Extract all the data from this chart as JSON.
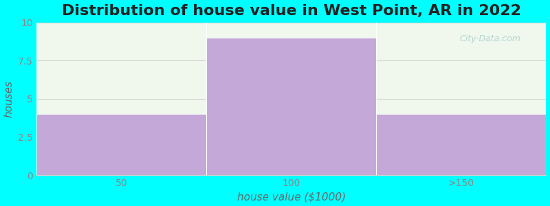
{
  "title": "Distribution of house value in West Point, AR in 2022",
  "xlabel": "house value ($1000)",
  "ylabel": "houses",
  "categories": [
    "50",
    "100",
    ">150"
  ],
  "values": [
    4,
    9,
    4
  ],
  "bar_color": "#c4a8d8",
  "ylim": [
    0,
    10
  ],
  "yticks": [
    0,
    2.5,
    5,
    7.5,
    10
  ],
  "background_outer": "#00ffff",
  "background_plot": "#f0f8ee",
  "grid_color": "#d0d0d0",
  "title_fontsize": 16,
  "axis_label_fontsize": 11,
  "tick_fontsize": 10,
  "tick_color": "#888888",
  "label_color": "#666666",
  "watermark_text": "City-Data.com",
  "watermark_color": "#aacccc"
}
